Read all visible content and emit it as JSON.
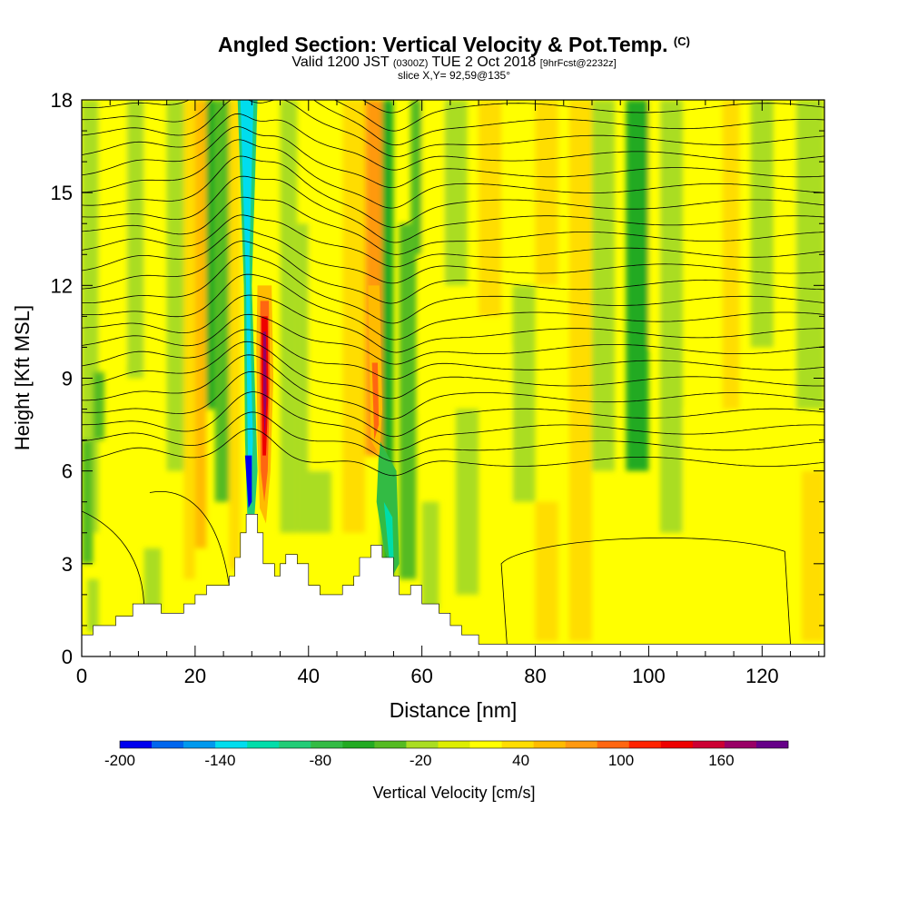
{
  "chart_data": {
    "type": "heatmap",
    "title": "Angled Section: Vertical Velocity & Pot.Temp.",
    "title_suffix": "(C)",
    "subtitle_main_1": "Valid 1200 JST",
    "subtitle_small_1": "(0300Z)",
    "subtitle_main_2": "TUE 2 Oct 2018",
    "subtitle_small_2": "[9hrFcst@2232z]",
    "subtitle2": "slice X,Y= 92,59@135°",
    "xlabel": "Distance [nm]",
    "ylabel": "Height [Kft MSL]",
    "xlim": [
      0,
      131
    ],
    "ylim": [
      0,
      18
    ],
    "x_ticks": [
      0,
      20,
      40,
      60,
      80,
      100,
      120
    ],
    "y_ticks": [
      0,
      3,
      6,
      9,
      12,
      15,
      18
    ],
    "colorbar": {
      "label": "Vertical Velocity [cm/s]",
      "min": -200,
      "max": 200,
      "step": 20,
      "tick_values": [
        -200,
        -140,
        -80,
        -20,
        40,
        100,
        160
      ],
      "colors": [
        "#0000ee",
        "#0066ee",
        "#0099ee",
        "#00ddee",
        "#00ddaa",
        "#22cc77",
        "#33bb44",
        "#22aa22",
        "#55bb22",
        "#aadd22",
        "#ddee00",
        "#ffff00",
        "#ffdd00",
        "#ffbb00",
        "#ff9911",
        "#ff6611",
        "#ff2200",
        "#ee0000",
        "#cc0033",
        "#990066",
        "#660088"
      ]
    },
    "terrain": [
      [
        0,
        0.7
      ],
      [
        2,
        0.7
      ],
      [
        2,
        1.0
      ],
      [
        6,
        1.0
      ],
      [
        6,
        1.3
      ],
      [
        9,
        1.3
      ],
      [
        9,
        1.7
      ],
      [
        14,
        1.7
      ],
      [
        14,
        1.4
      ],
      [
        18,
        1.4
      ],
      [
        18,
        1.7
      ],
      [
        20,
        1.7
      ],
      [
        20,
        2.0
      ],
      [
        22,
        2.0
      ],
      [
        22,
        2.3
      ],
      [
        26,
        2.3
      ],
      [
        26,
        2.6
      ],
      [
        27,
        2.6
      ],
      [
        27,
        3.2
      ],
      [
        28,
        3.2
      ],
      [
        28,
        4.0
      ],
      [
        29,
        4.0
      ],
      [
        29,
        4.6
      ],
      [
        31,
        4.6
      ],
      [
        31,
        4.0
      ],
      [
        32,
        4.0
      ],
      [
        32,
        3.0
      ],
      [
        34,
        3.0
      ],
      [
        34,
        2.6
      ],
      [
        35,
        2.6
      ],
      [
        35,
        3.0
      ],
      [
        36,
        3.0
      ],
      [
        36,
        3.3
      ],
      [
        38,
        3.3
      ],
      [
        38,
        3.0
      ],
      [
        40,
        3.0
      ],
      [
        40,
        2.3
      ],
      [
        42,
        2.3
      ],
      [
        42,
        2.0
      ],
      [
        46,
        2.0
      ],
      [
        46,
        2.3
      ],
      [
        48,
        2.3
      ],
      [
        48,
        2.6
      ],
      [
        49,
        2.6
      ],
      [
        49,
        3.2
      ],
      [
        51,
        3.2
      ],
      [
        51,
        3.6
      ],
      [
        53,
        3.6
      ],
      [
        53,
        3.2
      ],
      [
        55,
        3.2
      ],
      [
        55,
        2.6
      ],
      [
        56,
        2.6
      ],
      [
        56,
        2.0
      ],
      [
        58,
        2.0
      ],
      [
        58,
        2.3
      ],
      [
        60,
        2.3
      ],
      [
        60,
        1.7
      ],
      [
        63,
        1.7
      ],
      [
        63,
        1.4
      ],
      [
        65,
        1.4
      ],
      [
        65,
        1.0
      ],
      [
        67,
        1.0
      ],
      [
        67,
        0.7
      ],
      [
        70,
        0.7
      ],
      [
        70,
        0.4
      ],
      [
        131,
        0.4
      ]
    ],
    "theta_contour_levels_c": [
      16,
      18,
      20,
      22,
      24,
      26,
      28,
      30,
      32,
      34,
      36,
      38,
      40,
      42,
      44,
      46,
      48
    ],
    "updraft_cores": [
      {
        "x": 32.5,
        "y_range": [
          5.0,
          11.5
        ],
        "max_cm_s": 200
      },
      {
        "x": 52,
        "y_range": [
          6.5,
          18
        ],
        "max_cm_s": 80
      },
      {
        "x": 20,
        "y_range": [
          2.5,
          9
        ],
        "max_cm_s": 60
      }
    ],
    "downdraft_cores": [
      {
        "x": 29,
        "y_range": [
          4.5,
          18
        ],
        "min_cm_s": -200
      },
      {
        "x": 55,
        "y_range": [
          2.5,
          7
        ],
        "min_cm_s": -120
      },
      {
        "x": 98,
        "y_range": [
          6,
          18
        ],
        "min_cm_s": -60
      }
    ]
  }
}
